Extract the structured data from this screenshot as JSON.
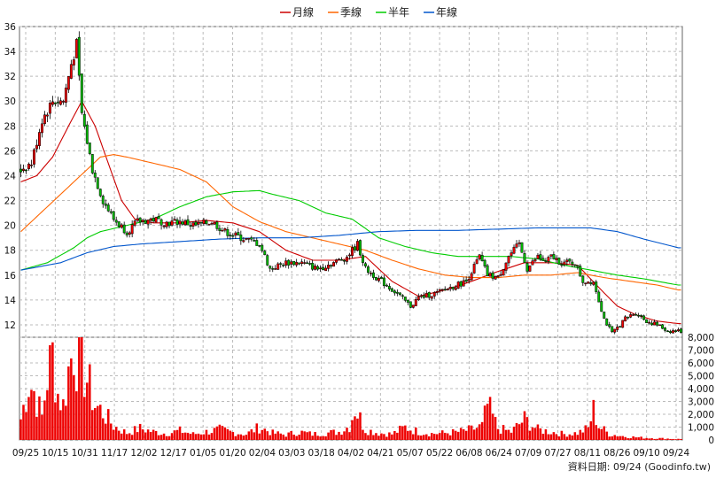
{
  "chart_data": {
    "type": "candlestick",
    "legend": [
      {
        "name": "月線",
        "color": "#cc0000"
      },
      {
        "name": "季線",
        "color": "#ff6600"
      },
      {
        "name": "半年",
        "color": "#00cc00"
      },
      {
        "name": "年線",
        "color": "#0055cc"
      }
    ],
    "price_ylim": [
      11,
      36
    ],
    "price_ticks": [
      12,
      14,
      16,
      18,
      20,
      22,
      24,
      26,
      28,
      30,
      32,
      34,
      36
    ],
    "volume_ylim": [
      0,
      8000
    ],
    "volume_ticks": [
      "0",
      "1,000",
      "2,000",
      "3,000",
      "4,000",
      "5,000",
      "6,000",
      "7,000",
      "8,000"
    ],
    "x_tick_labels": [
      "09/25",
      "10/15",
      "10/31",
      "11/17",
      "12/02",
      "12/17",
      "01/05",
      "01/20",
      "02/04",
      "03/03",
      "03/18",
      "04/02",
      "04/21",
      "05/07",
      "05/22",
      "06/08",
      "06/24",
      "07/09",
      "07/27",
      "08/11",
      "08/26",
      "09/10",
      "09/24"
    ],
    "source_text": "資料日期: 09/24  (Goodinfo.tw)",
    "close_keypoints": [
      [
        0,
        24.5
      ],
      [
        4,
        25
      ],
      [
        8,
        28.5
      ],
      [
        12,
        30
      ],
      [
        16,
        30
      ],
      [
        19,
        33
      ],
      [
        21,
        34.5
      ],
      [
        23,
        29
      ],
      [
        27,
        24.5
      ],
      [
        31,
        22
      ],
      [
        35,
        20.5
      ],
      [
        40,
        19.5
      ],
      [
        44,
        20.3
      ],
      [
        50,
        20.5
      ],
      [
        55,
        20.2
      ],
      [
        60,
        20.3
      ],
      [
        66,
        20
      ],
      [
        72,
        20.3
      ],
      [
        77,
        19.5
      ],
      [
        83,
        19
      ],
      [
        90,
        18.5
      ],
      [
        94,
        16.5
      ],
      [
        100,
        17
      ],
      [
        106,
        17
      ],
      [
        112,
        16.5
      ],
      [
        118,
        17
      ],
      [
        123,
        17.5
      ],
      [
        127,
        18.5
      ],
      [
        130,
        16.5
      ],
      [
        136,
        15.5
      ],
      [
        142,
        14.5
      ],
      [
        147,
        13.5
      ],
      [
        150,
        14.2
      ],
      [
        156,
        14.5
      ],
      [
        162,
        15
      ],
      [
        168,
        15.5
      ],
      [
        173,
        17.5
      ],
      [
        176,
        16
      ],
      [
        180,
        15.8
      ],
      [
        184,
        17.5
      ],
      [
        188,
        18.5
      ],
      [
        191,
        16.5
      ],
      [
        195,
        17.5
      ],
      [
        198,
        17
      ],
      [
        200,
        17.5
      ],
      [
        204,
        17
      ],
      [
        209,
        17
      ],
      [
        212,
        15.5
      ],
      [
        216,
        15.5
      ],
      [
        220,
        12.5
      ],
      [
        223,
        11.3
      ],
      [
        228,
        12.5
      ],
      [
        232,
        13
      ],
      [
        236,
        12.3
      ],
      [
        240,
        12
      ],
      [
        244,
        11.5
      ],
      [
        248,
        11.5
      ]
    ],
    "volume_keypoints": [
      [
        0,
        1800
      ],
      [
        3,
        5000
      ],
      [
        5,
        4200
      ],
      [
        8,
        2000
      ],
      [
        10,
        5500
      ],
      [
        12,
        7300
      ],
      [
        14,
        4000
      ],
      [
        16,
        3000
      ],
      [
        18,
        6000
      ],
      [
        20,
        8300
      ],
      [
        22,
        7000
      ],
      [
        24,
        6000
      ],
      [
        26,
        4500
      ],
      [
        28,
        3000
      ],
      [
        31,
        2400
      ],
      [
        35,
        1200
      ],
      [
        40,
        600
      ],
      [
        45,
        1000
      ],
      [
        50,
        700
      ],
      [
        55,
        550
      ],
      [
        60,
        800
      ],
      [
        65,
        500
      ],
      [
        70,
        700
      ],
      [
        75,
        900
      ],
      [
        80,
        650
      ],
      [
        85,
        500
      ],
      [
        90,
        1100
      ],
      [
        95,
        600
      ],
      [
        100,
        450
      ],
      [
        105,
        700
      ],
      [
        110,
        500
      ],
      [
        115,
        600
      ],
      [
        120,
        700
      ],
      [
        124,
        1200
      ],
      [
        126,
        2800
      ],
      [
        130,
        900
      ],
      [
        135,
        600
      ],
      [
        140,
        500
      ],
      [
        145,
        1100
      ],
      [
        150,
        700
      ],
      [
        155,
        550
      ],
      [
        160,
        600
      ],
      [
        165,
        700
      ],
      [
        170,
        900
      ],
      [
        174,
        1200
      ],
      [
        176,
        3000
      ],
      [
        180,
        1000
      ],
      [
        185,
        700
      ],
      [
        190,
        1800
      ],
      [
        195,
        900
      ],
      [
        200,
        700
      ],
      [
        205,
        500
      ],
      [
        210,
        600
      ],
      [
        214,
        1000
      ],
      [
        216,
        2600
      ],
      [
        218,
        1200
      ],
      [
        222,
        500
      ],
      [
        228,
        300
      ],
      [
        234,
        200
      ],
      [
        240,
        150
      ],
      [
        248,
        80
      ]
    ],
    "month_ma_keypoints": [
      [
        0,
        23.5
      ],
      [
        6,
        24
      ],
      [
        12,
        25.5
      ],
      [
        18,
        28
      ],
      [
        23,
        30
      ],
      [
        28,
        28
      ],
      [
        33,
        25
      ],
      [
        38,
        22
      ],
      [
        43,
        20.5
      ],
      [
        50,
        20.2
      ],
      [
        60,
        20.2
      ],
      [
        70,
        20.4
      ],
      [
        80,
        20.2
      ],
      [
        90,
        19.5
      ],
      [
        100,
        18
      ],
      [
        110,
        17.2
      ],
      [
        120,
        17.2
      ],
      [
        130,
        17.5
      ],
      [
        140,
        15.5
      ],
      [
        150,
        14.3
      ],
      [
        160,
        14.8
      ],
      [
        170,
        15.5
      ],
      [
        180,
        16.3
      ],
      [
        190,
        17
      ],
      [
        200,
        17
      ],
      [
        210,
        16.8
      ],
      [
        218,
        15
      ],
      [
        225,
        13.5
      ],
      [
        232,
        12.8
      ],
      [
        240,
        12.3
      ],
      [
        248,
        12.1
      ]
    ],
    "quarter_ma_keypoints": [
      [
        0,
        19.5
      ],
      [
        10,
        21.5
      ],
      [
        20,
        23.5
      ],
      [
        30,
        25.5
      ],
      [
        35,
        25.7
      ],
      [
        40,
        25.5
      ],
      [
        50,
        25
      ],
      [
        60,
        24.5
      ],
      [
        70,
        23.5
      ],
      [
        80,
        21.5
      ],
      [
        90,
        20.3
      ],
      [
        100,
        19.5
      ],
      [
        110,
        19
      ],
      [
        120,
        18.5
      ],
      [
        130,
        18
      ],
      [
        140,
        17.2
      ],
      [
        150,
        16.5
      ],
      [
        160,
        16
      ],
      [
        170,
        15.8
      ],
      [
        180,
        15.8
      ],
      [
        190,
        16
      ],
      [
        200,
        16
      ],
      [
        210,
        16.2
      ],
      [
        220,
        15.8
      ],
      [
        230,
        15.5
      ],
      [
        240,
        15.2
      ],
      [
        248,
        14.8
      ]
    ],
    "half_ma_keypoints": [
      [
        0,
        16.4
      ],
      [
        10,
        17
      ],
      [
        20,
        18.2
      ],
      [
        25,
        19
      ],
      [
        30,
        19.5
      ],
      [
        40,
        20
      ],
      [
        50,
        20.5
      ],
      [
        60,
        21.5
      ],
      [
        70,
        22.3
      ],
      [
        80,
        22.7
      ],
      [
        90,
        22.8
      ],
      [
        95,
        22.5
      ],
      [
        105,
        22
      ],
      [
        115,
        21
      ],
      [
        125,
        20.5
      ],
      [
        135,
        19
      ],
      [
        145,
        18.3
      ],
      [
        155,
        17.8
      ],
      [
        165,
        17.5
      ],
      [
        175,
        17.5
      ],
      [
        185,
        17.5
      ],
      [
        195,
        17.3
      ],
      [
        205,
        16.8
      ],
      [
        215,
        16.4
      ],
      [
        225,
        16
      ],
      [
        235,
        15.7
      ],
      [
        248,
        15.2
      ]
    ],
    "year_ma_keypoints": [
      [
        0,
        16.4
      ],
      [
        15,
        17
      ],
      [
        25,
        17.8
      ],
      [
        35,
        18.3
      ],
      [
        45,
        18.5
      ],
      [
        60,
        18.7
      ],
      [
        75,
        18.9
      ],
      [
        90,
        19
      ],
      [
        105,
        19
      ],
      [
        120,
        19.2
      ],
      [
        135,
        19.5
      ],
      [
        150,
        19.6
      ],
      [
        165,
        19.6
      ],
      [
        180,
        19.7
      ],
      [
        195,
        19.8
      ],
      [
        205,
        19.8
      ],
      [
        215,
        19.8
      ],
      [
        225,
        19.5
      ],
      [
        235,
        18.9
      ],
      [
        248,
        18.2
      ]
    ]
  }
}
